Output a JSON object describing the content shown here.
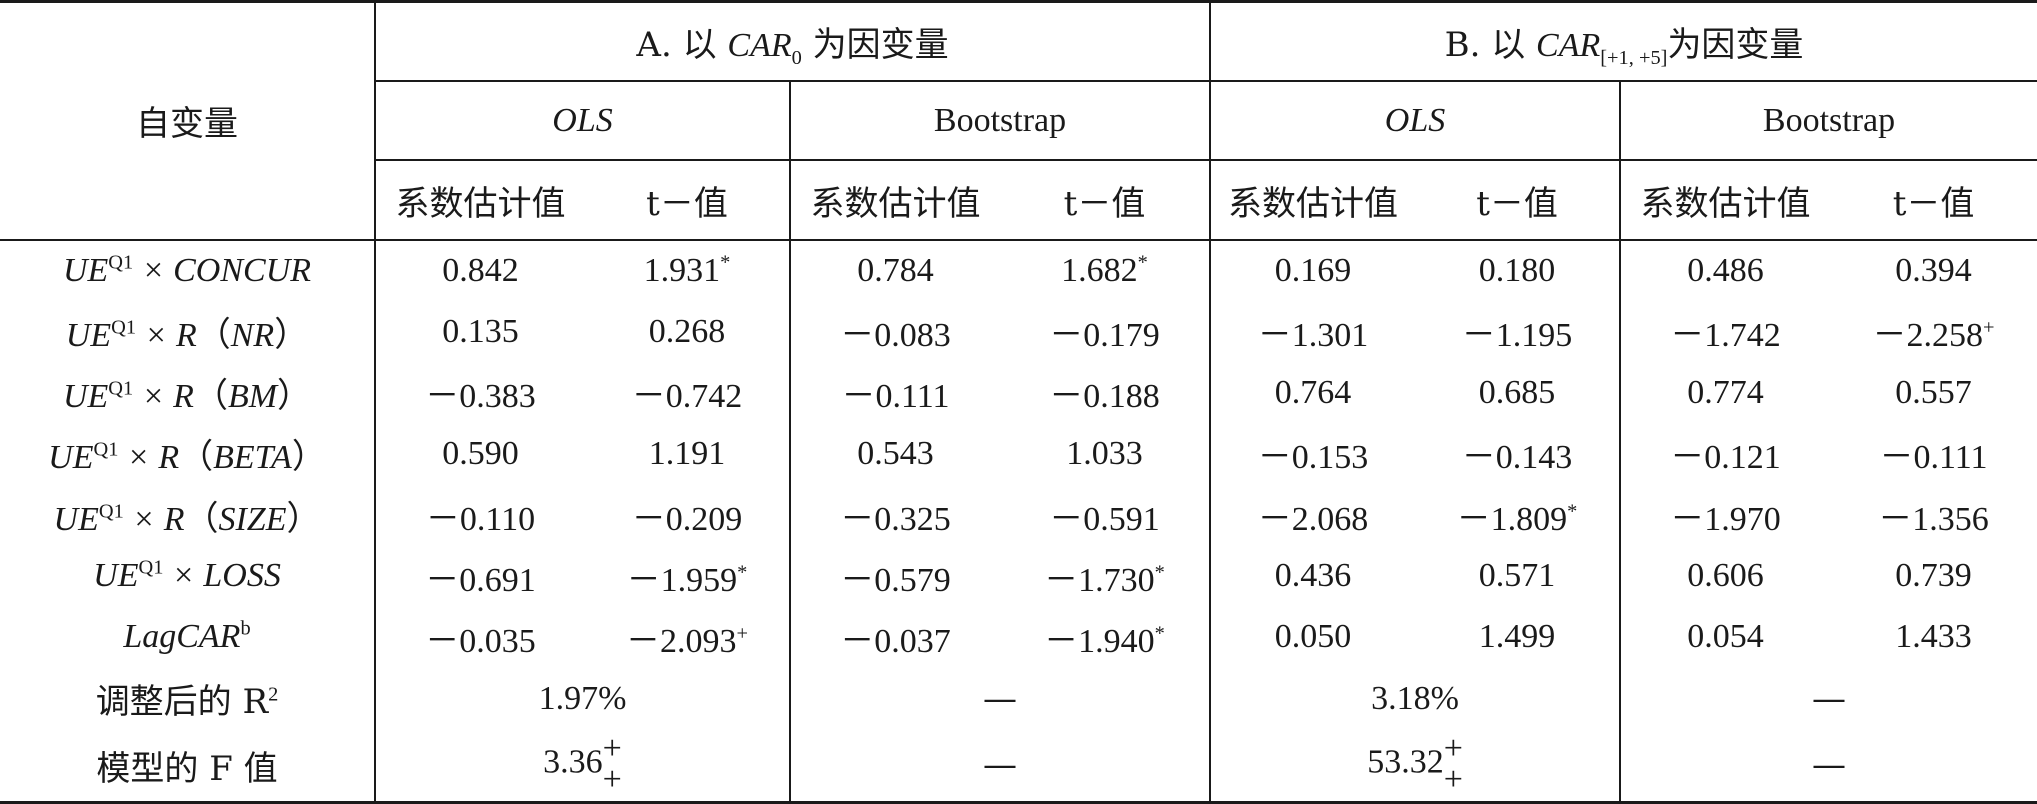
{
  "header": {
    "row_label": "自变量",
    "panel_a": {
      "prefix": "A. 以 ",
      "var": "CAR",
      "sub": "0",
      "suffix": " 为因变量"
    },
    "panel_b": {
      "prefix": "B. 以 ",
      "var": "CAR",
      "sub": "[+1, +5]",
      "suffix": "为因变量"
    },
    "method_ols": "OLS",
    "method_bootstrap": "Bootstrap",
    "col_coef": "系数估计值",
    "col_t": "t－值"
  },
  "rows": [
    {
      "label": {
        "main": "UE",
        "sup": "Q1",
        "rest": " × CONCUR",
        "paren": ""
      },
      "vals": [
        "0.842",
        "1.931",
        "0.784",
        "1.682",
        "0.169",
        "0.180",
        "0.486",
        "0.394"
      ],
      "marks": [
        "",
        "*",
        "",
        "*",
        "",
        "",
        "",
        ""
      ]
    },
    {
      "label": {
        "main": "UE",
        "sup": "Q1",
        "rest": " × R",
        "paren": "NR"
      },
      "vals": [
        "0.135",
        "0.268",
        "－0.083",
        "－0.179",
        "－1.301",
        "－1.195",
        "－1.742",
        "－2.258"
      ],
      "marks": [
        "",
        "",
        "",
        "",
        "",
        "",
        "",
        "+"
      ]
    },
    {
      "label": {
        "main": "UE",
        "sup": "Q1",
        "rest": " × R",
        "paren": "BM"
      },
      "vals": [
        "－0.383",
        "－0.742",
        "－0.111",
        "－0.188",
        "0.764",
        "0.685",
        "0.774",
        "0.557"
      ],
      "marks": [
        "",
        "",
        "",
        "",
        "",
        "",
        "",
        ""
      ]
    },
    {
      "label": {
        "main": "UE",
        "sup": "Q1",
        "rest": " × R",
        "paren": "BETA"
      },
      "vals": [
        "0.590",
        "1.191",
        "0.543",
        "1.033",
        "－0.153",
        "－0.143",
        "－0.121",
        "－0.111"
      ],
      "marks": [
        "",
        "",
        "",
        "",
        "",
        "",
        "",
        ""
      ]
    },
    {
      "label": {
        "main": "UE",
        "sup": "Q1",
        "rest": " × R",
        "paren": "SIZE"
      },
      "vals": [
        "－0.110",
        "－0.209",
        "－0.325",
        "－0.591",
        "－2.068",
        "－1.809",
        "－1.970",
        "－1.356"
      ],
      "marks": [
        "",
        "",
        "",
        "",
        "",
        "*",
        "",
        ""
      ]
    },
    {
      "label": {
        "main": "UE",
        "sup": "Q1",
        "rest": " × LOSS",
        "paren": ""
      },
      "vals": [
        "－0.691",
        "－1.959",
        "－0.579",
        "－1.730",
        "0.436",
        "0.571",
        "0.606",
        "0.739"
      ],
      "marks": [
        "",
        "*",
        "",
        "*",
        "",
        "",
        "",
        ""
      ]
    },
    {
      "label": {
        "main": "LagCAR",
        "sup": "b",
        "rest": "",
        "paren": ""
      },
      "vals": [
        "－0.035",
        "－2.093",
        "－0.037",
        "－1.940",
        "0.050",
        "1.499",
        "0.054",
        "1.433"
      ],
      "marks": [
        "",
        "+",
        "",
        "*",
        "",
        "",
        "",
        ""
      ]
    }
  ],
  "footer": {
    "adj_r2_label": "调整后的 R",
    "adj_r2_sup": "2",
    "adj_r2_a_ols": "1.97%",
    "adj_r2_a_boot": "—",
    "adj_r2_b_ols": "3.18%",
    "adj_r2_b_boot": "—",
    "f_label": "模型的 F 值",
    "f_a_ols": "3.36",
    "f_a_ols_mark_top": "+",
    "f_a_ols_mark_bottom": "+",
    "f_a_boot": "—",
    "f_b_ols": "53.32",
    "f_b_ols_mark_top": "+",
    "f_b_ols_mark_bottom": "+",
    "f_b_boot": "—"
  }
}
